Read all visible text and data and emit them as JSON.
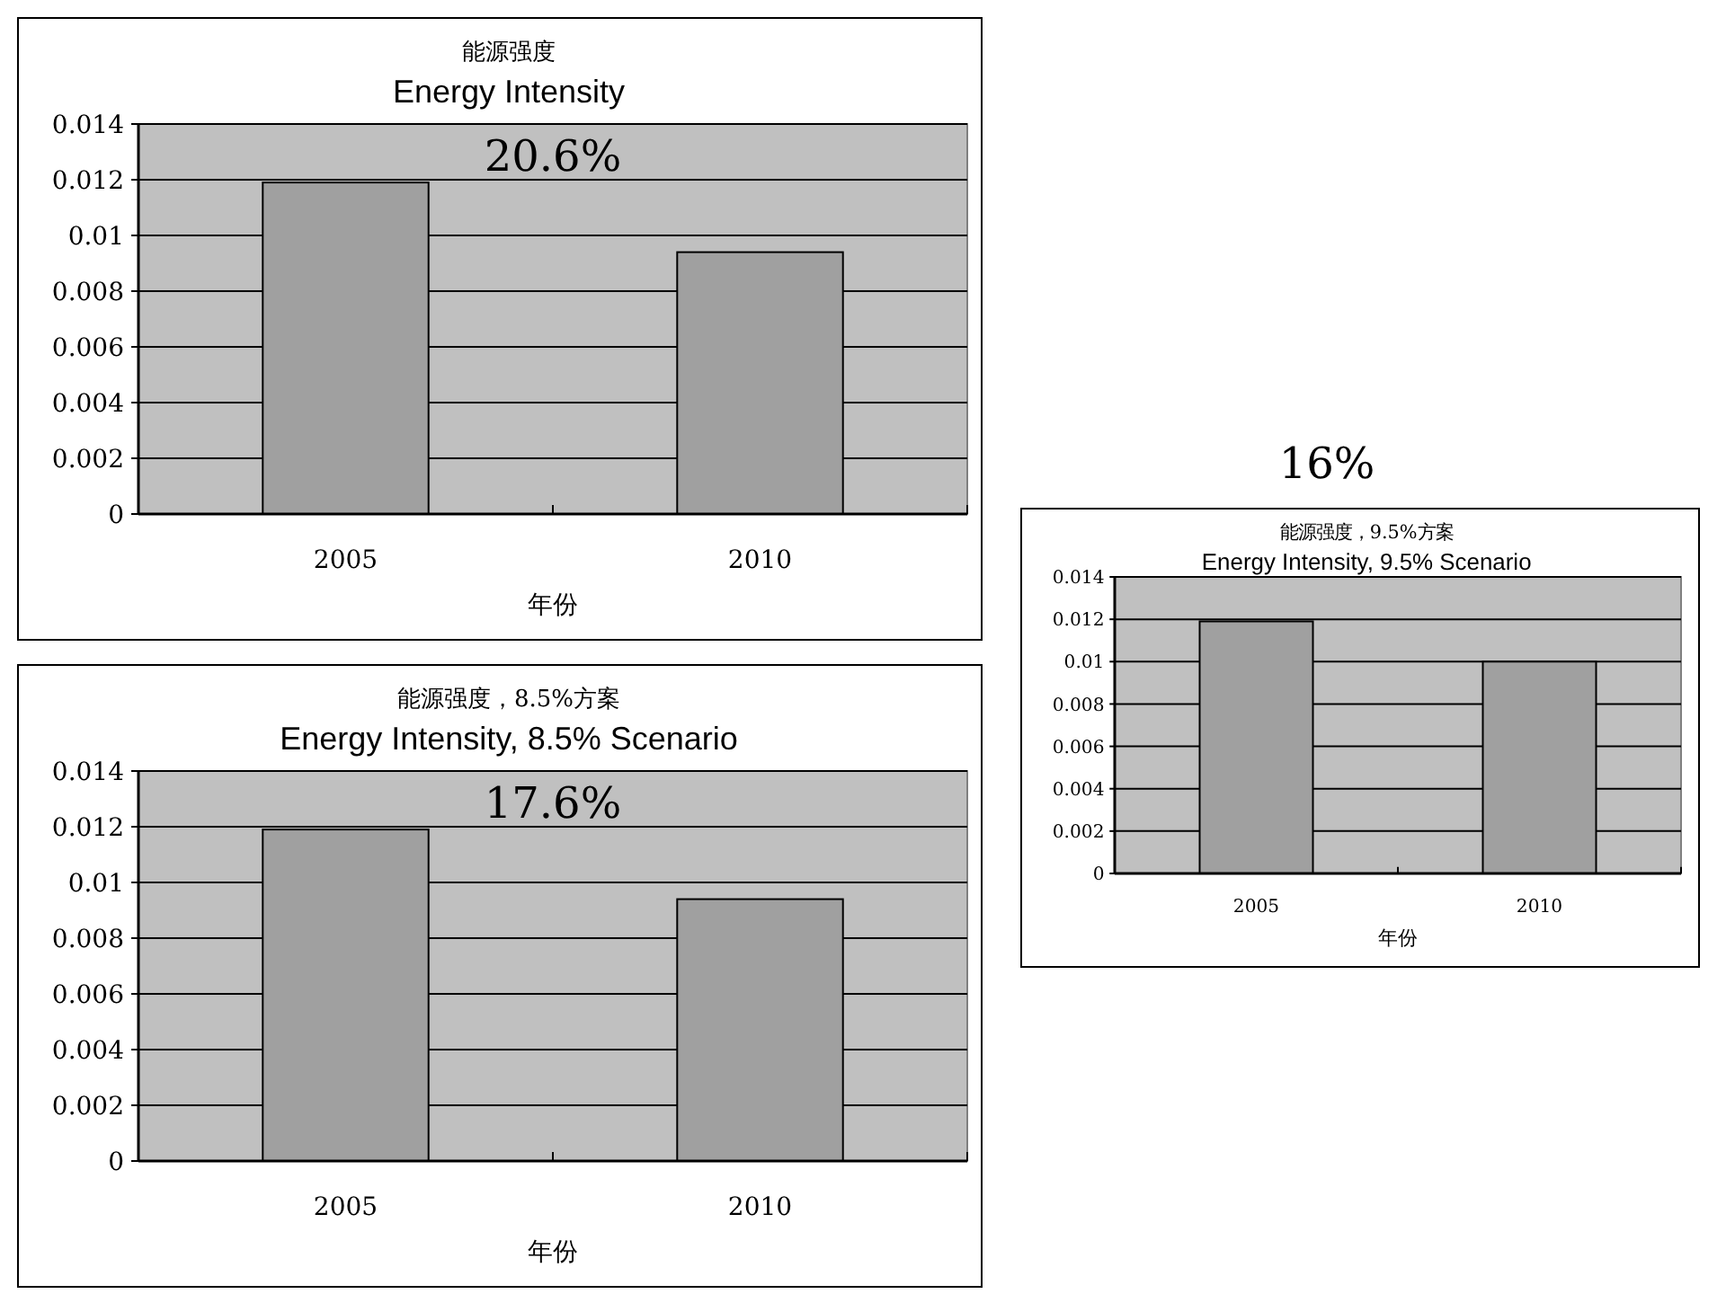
{
  "chart_data": [
    {
      "type": "bar",
      "title": "能源强度",
      "subtitle": "Energy Intensity",
      "xlabel": "年份",
      "categories": [
        "2005",
        "2010"
      ],
      "values": [
        0.0119,
        0.0094
      ],
      "color": "#a0a0a0",
      "ylim": [
        0,
        0.014
      ],
      "yticks": [
        0,
        0.002,
        0.004,
        0.006,
        0.008,
        0.01,
        0.012,
        0.014
      ],
      "grid": "y",
      "annotations": [
        "20.6%"
      ]
    },
    {
      "type": "bar",
      "title": "能源强度，8.5%方案",
      "subtitle": "Energy Intensity, 8.5% Scenario",
      "xlabel": "年份",
      "categories": [
        "2005",
        "2010"
      ],
      "values": [
        0.0119,
        0.0094
      ],
      "color": "#a0a0a0",
      "ylim": [
        0,
        0.014
      ],
      "yticks": [
        0,
        0.002,
        0.004,
        0.006,
        0.008,
        0.01,
        0.012,
        0.014
      ],
      "grid": "y",
      "annotations": [
        "17.6%"
      ]
    },
    {
      "type": "bar",
      "title": "能源强度，9.5%方案",
      "subtitle": "Energy Intensity, 9.5% Scenario",
      "xlabel": "年份",
      "categories": [
        "2005",
        "2010"
      ],
      "values": [
        0.0119,
        0.01
      ],
      "color": "#a0a0a0",
      "ylim": [
        0,
        0.014
      ],
      "yticks": [
        0,
        0.002,
        0.004,
        0.006,
        0.008,
        0.01,
        0.012,
        0.014
      ],
      "grid": "y",
      "annotations": [
        "16%"
      ]
    }
  ]
}
